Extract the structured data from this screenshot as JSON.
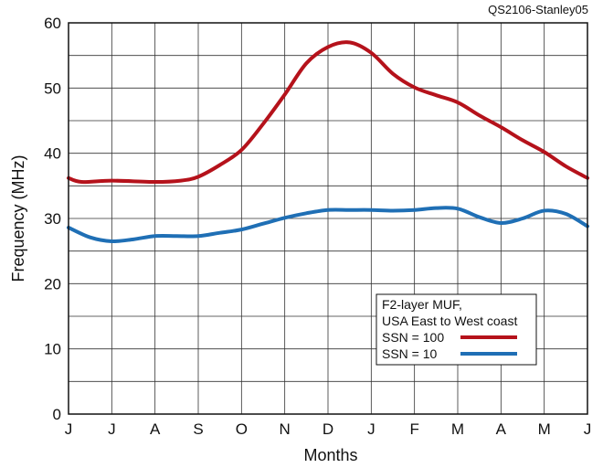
{
  "credit": "QS2106-Stanley05",
  "chart_data": {
    "type": "line",
    "xlabel": "Months",
    "ylabel": "Frequency (MHz)",
    "categories": [
      "J",
      "J",
      "A",
      "S",
      "O",
      "N",
      "D",
      "J",
      "F",
      "M",
      "A",
      "M",
      "J"
    ],
    "ylim": [
      0,
      60
    ],
    "yticks": [
      0,
      10,
      20,
      30,
      40,
      50,
      60
    ],
    "grid": true,
    "legend": {
      "position": "bottom-right",
      "title_lines": [
        "F2-layer MUF,",
        "USA East to West coast"
      ]
    },
    "series": [
      {
        "name": "SSN = 100",
        "color": "#b5121b",
        "points": [
          [
            0,
            36.2
          ],
          [
            0.3,
            35.6
          ],
          [
            1,
            35.8
          ],
          [
            2,
            35.6
          ],
          [
            2.6,
            35.8
          ],
          [
            3,
            36.4
          ],
          [
            3.5,
            38.2
          ],
          [
            4,
            40.5
          ],
          [
            4.5,
            44.5
          ],
          [
            5,
            49
          ],
          [
            5.5,
            53.8
          ],
          [
            6,
            56.3
          ],
          [
            6.5,
            57
          ],
          [
            7,
            55.4
          ],
          [
            7.5,
            52.2
          ],
          [
            8,
            50.1
          ],
          [
            8.5,
            48.9
          ],
          [
            9,
            47.8
          ],
          [
            9.5,
            45.8
          ],
          [
            10,
            44
          ],
          [
            10.5,
            42
          ],
          [
            11,
            40.2
          ],
          [
            11.5,
            38
          ],
          [
            12,
            36.2
          ]
        ]
      },
      {
        "name": "SSN = 10",
        "color": "#1f6fb5",
        "points": [
          [
            0,
            28.6
          ],
          [
            0.5,
            27.1
          ],
          [
            1,
            26.5
          ],
          [
            1.5,
            26.8
          ],
          [
            2,
            27.3
          ],
          [
            2.5,
            27.3
          ],
          [
            3,
            27.3
          ],
          [
            3.5,
            27.8
          ],
          [
            4,
            28.3
          ],
          [
            4.5,
            29.2
          ],
          [
            5,
            30.1
          ],
          [
            5.5,
            30.8
          ],
          [
            6,
            31.3
          ],
          [
            6.5,
            31.3
          ],
          [
            7,
            31.3
          ],
          [
            7.5,
            31.2
          ],
          [
            8,
            31.3
          ],
          [
            8.5,
            31.6
          ],
          [
            9,
            31.5
          ],
          [
            9.5,
            30.2
          ],
          [
            10,
            29.3
          ],
          [
            10.5,
            30
          ],
          [
            11,
            31.2
          ],
          [
            11.5,
            30.7
          ],
          [
            12,
            28.8
          ]
        ]
      }
    ]
  }
}
